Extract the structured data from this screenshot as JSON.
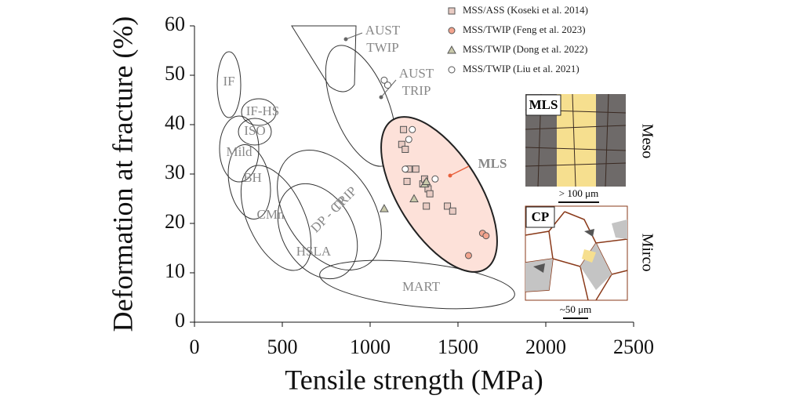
{
  "chart_data": {
    "type": "scatter",
    "x_label": "Tensile strength (MPa)",
    "y_label": "Deformation at fracture (%)",
    "xlim": [
      0,
      2500
    ],
    "xticks": [
      0,
      500,
      1000,
      1500,
      2000,
      2500
    ],
    "ylim": [
      0,
      60
    ],
    "yticks": [
      0,
      10,
      20,
      30,
      40,
      50,
      60
    ],
    "series": [
      {
        "name": "MSS/ASS (Koseki et al. 2014)",
        "marker": "square",
        "color": "#e9cbc3",
        "x": [
          1190,
          1180,
          1200,
          1220,
          1260,
          1210,
          1300,
          1330,
          1340,
          1310,
          1320,
          1440,
          1470
        ],
        "values": [
          39,
          36,
          35,
          31,
          31,
          28.5,
          28,
          27,
          26,
          29,
          23.5,
          23.5,
          22.5
        ]
      },
      {
        "name": "MSS/TWIP (Feng et al. 2023)",
        "marker": "circle",
        "color": "#f3a48e",
        "x": [
          1560,
          1640,
          1660
        ],
        "values": [
          13.5,
          18,
          17.5
        ]
      },
      {
        "name": "MSS/TWIP (Dong et al. 2022)",
        "marker": "triangle",
        "color": "#c9c9ab",
        "x": [
          1080,
          1250,
          1310,
          1320
        ],
        "values": [
          23,
          25,
          28,
          28.5
        ]
      },
      {
        "name": "MSS/TWIP (Liu et al. 2021)",
        "marker": "circle",
        "color": "#ffffff",
        "x": [
          1080,
          1100,
          1220,
          1240,
          1200,
          1370
        ],
        "values": [
          49,
          48,
          37,
          39,
          31,
          29
        ]
      }
    ],
    "regions": [
      [
        "IF"
      ],
      [
        "IF-HS"
      ],
      [
        "ISO"
      ],
      [
        "Mild"
      ],
      [
        "BH"
      ],
      [
        "CMn"
      ],
      [
        "TRIP"
      ],
      [
        "DP - CP"
      ],
      [
        "HSLA"
      ],
      [
        "MART"
      ],
      [
        "AUST",
        "TWIP"
      ],
      [
        "AUST",
        "TRIP"
      ],
      [
        "MLS"
      ]
    ],
    "insets": {
      "mls": {
        "label": "MLS",
        "scale": "> 100 μm",
        "side": "Meso"
      },
      "cp": {
        "label": "CP",
        "scale": "~50 μm",
        "side": "Mirco"
      }
    }
  }
}
